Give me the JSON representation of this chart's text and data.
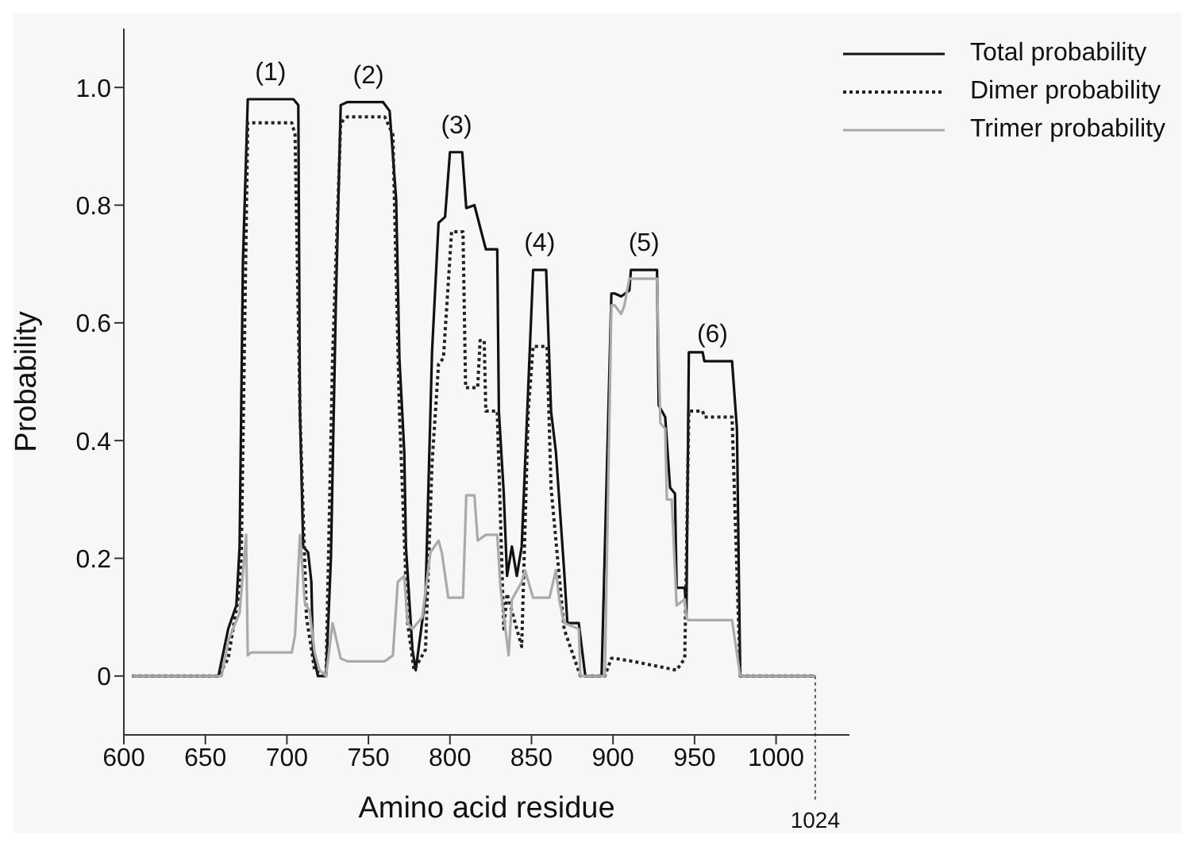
{
  "chart_data": {
    "type": "line",
    "xlabel": "Amino acid residue",
    "ylabel": "Probability",
    "xlim": [
      600,
      1045
    ],
    "ylim": [
      -0.1,
      1.1
    ],
    "xticks": [
      600,
      650,
      700,
      750,
      800,
      850,
      900,
      950,
      1000
    ],
    "yticks": [
      {
        "value": 0,
        "label": "0"
      },
      {
        "value": 0.2,
        "label": "0.2"
      },
      {
        "value": 0.4,
        "label": "0.4"
      },
      {
        "value": 0.6,
        "label": "0.6"
      },
      {
        "value": 0.8,
        "label": "0.8"
      },
      {
        "value": 1,
        "label": "1.0"
      }
    ],
    "legend": "top right",
    "marker": "none",
    "ref_lines": [
      {
        "axis": "x",
        "value": 1024,
        "label": "1024",
        "color": "#555555",
        "line_style": "dotted"
      }
    ],
    "annotations": [
      {
        "text": "(1)",
        "x": 690,
        "y": 0.98
      },
      {
        "text": "(2)",
        "x": 750,
        "y": 0.975
      },
      {
        "text": "(3)",
        "x": 804,
        "y": 0.89
      },
      {
        "text": "(4)",
        "x": 855,
        "y": 0.69
      },
      {
        "text": "(5)",
        "x": 919,
        "y": 0.69
      },
      {
        "text": "(6)",
        "x": 961,
        "y": 0.535
      }
    ],
    "series": [
      {
        "name": "Total probability",
        "color": "#111111",
        "line_style": "solid",
        "x": [
          605,
          658,
          664,
          669,
          671,
          673,
          676,
          704,
          707,
          708,
          710,
          713,
          715,
          716,
          719,
          724,
          727,
          730,
          733,
          737,
          759,
          763,
          767,
          769,
          772,
          773,
          777,
          779,
          785,
          789,
          793,
          797,
          800,
          807.5,
          810,
          815,
          822,
          829,
          830,
          833,
          835,
          838,
          841,
          844,
          848,
          851,
          859,
          862,
          865,
          870,
          872,
          879,
          883,
          893,
          899,
          901,
          905,
          910,
          911,
          927,
          928,
          932,
          935,
          938,
          939,
          944,
          945,
          946.5,
          955,
          956,
          973,
          976,
          978,
          1024
        ],
        "values": [
          0,
          0,
          0.08,
          0.12,
          0.22,
          0.7,
          0.98,
          0.98,
          0.97,
          0.45,
          0.22,
          0.21,
          0.16,
          0.04,
          0,
          0,
          0.2,
          0.63,
          0.97,
          0.975,
          0.975,
          0.96,
          0.81,
          0.54,
          0.38,
          0.22,
          0.045,
          0.01,
          0.135,
          0.55,
          0.77,
          0.78,
          0.89,
          0.89,
          0.795,
          0.8,
          0.725,
          0.725,
          0.45,
          0.31,
          0.17,
          0.22,
          0.17,
          0.22,
          0.49,
          0.69,
          0.69,
          0.45,
          0.38,
          0.18,
          0.09,
          0.09,
          0,
          0,
          0.65,
          0.65,
          0.645,
          0.655,
          0.69,
          0.69,
          0.46,
          0.44,
          0.32,
          0.31,
          0.15,
          0.15,
          0.1,
          0.55,
          0.55,
          0.535,
          0.535,
          0.42,
          0,
          0
        ]
      },
      {
        "name": "Dimer probability",
        "color": "#222222",
        "line_style": "dotted",
        "x": [
          605,
          658,
          664,
          670,
          672,
          676,
          678,
          703,
          705,
          708,
          712,
          717,
          724,
          728,
          733,
          737,
          760,
          765,
          769,
          774,
          778,
          785,
          789,
          793,
          796,
          801,
          808,
          809.6,
          817,
          818.5,
          821,
          822,
          829,
          833,
          835,
          841,
          844,
          848,
          851,
          859.5,
          862,
          870,
          880,
          895,
          899,
          901,
          912,
          939,
          944,
          946.5,
          955,
          956,
          973,
          978,
          1024
        ],
        "values": [
          0,
          0,
          0.03,
          0.13,
          0.2,
          0.94,
          0.94,
          0.94,
          0.92,
          0.45,
          0.1,
          0.01,
          0,
          0.54,
          0.94,
          0.95,
          0.95,
          0.92,
          0.45,
          0.09,
          0.01,
          0.045,
          0.36,
          0.53,
          0.54,
          0.755,
          0.755,
          0.49,
          0.49,
          0.57,
          0.57,
          0.45,
          0.45,
          0.08,
          0.14,
          0.08,
          0.05,
          0.45,
          0.56,
          0.56,
          0.32,
          0.08,
          0,
          0,
          0.03,
          0.03,
          0.025,
          0.01,
          0.03,
          0.45,
          0.45,
          0.44,
          0.44,
          0,
          0
        ]
      },
      {
        "name": "Trimer probability",
        "color": "#aaaaaa",
        "line_style": "solid",
        "x": [
          605,
          660,
          664,
          671,
          675,
          676,
          678,
          703,
          705,
          708,
          711,
          714,
          717,
          720,
          724,
          728,
          733,
          737,
          760,
          765,
          768,
          772,
          774,
          777,
          783,
          788,
          793,
          795,
          799,
          808,
          810,
          815,
          817,
          822,
          829,
          831,
          834,
          836,
          838,
          844,
          846,
          851,
          861,
          865,
          867,
          870,
          879,
          880,
          895,
          899,
          901,
          905,
          907,
          910,
          927,
          929,
          932,
          933,
          936,
          939,
          944,
          945,
          946,
          973,
          978,
          1024
        ],
        "values": [
          0,
          0,
          0.06,
          0.107,
          0.24,
          0.035,
          0.04,
          0.04,
          0.07,
          0.24,
          0.125,
          0.11,
          0.04,
          0.01,
          0,
          0.09,
          0.03,
          0.025,
          0.025,
          0.035,
          0.16,
          0.17,
          0.09,
          0.08,
          0.1,
          0.21,
          0.23,
          0.21,
          0.133,
          0.133,
          0.307,
          0.307,
          0.23,
          0.24,
          0.24,
          0.15,
          0.08,
          0.035,
          0.13,
          0.16,
          0.18,
          0.133,
          0.133,
          0.18,
          0.13,
          0.09,
          0.08,
          0,
          0,
          0.63,
          0.63,
          0.615,
          0.63,
          0.675,
          0.675,
          0.43,
          0.42,
          0.3,
          0.3,
          0.12,
          0.13,
          0.1,
          0.095,
          0.095,
          0,
          0
        ]
      }
    ]
  }
}
